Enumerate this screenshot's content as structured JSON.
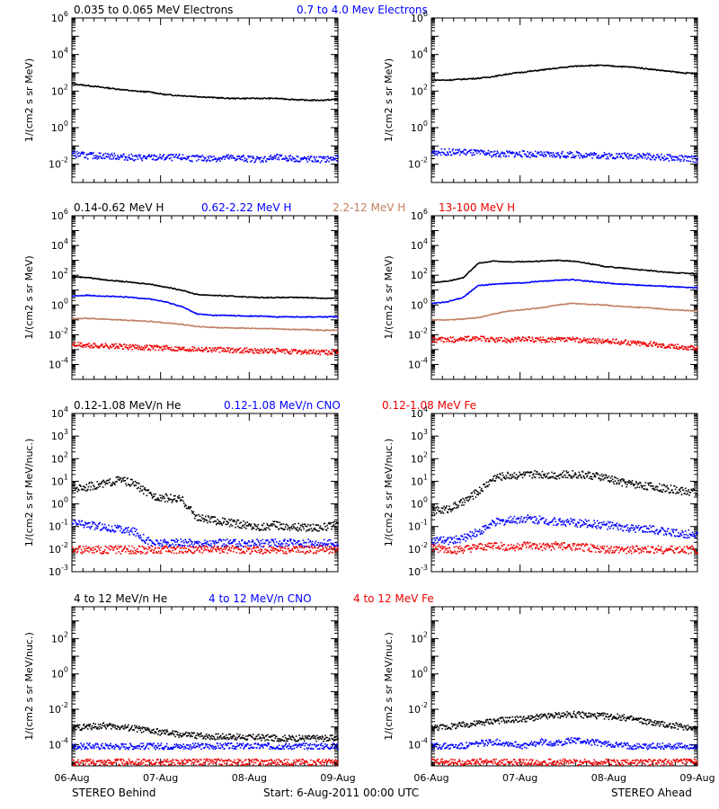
{
  "chart_data": [
    {
      "type": "scatter",
      "panel": "electrons-behind",
      "titles": [
        {
          "text": "0.035 to 0.065 MeV Electrons",
          "color": "#000000"
        },
        {
          "text": "0.7 to 4.0 Mev Electrons",
          "color": "#0000ff"
        }
      ],
      "ylabel": "1/(cm2 s sr MeV)",
      "yscale": "log",
      "ylim": [
        -3,
        6
      ],
      "yticks": [
        -2,
        0,
        2,
        4,
        6
      ],
      "x": [
        "06-Aug",
        "07-Aug",
        "08-Aug",
        "09-Aug"
      ],
      "series": [
        {
          "name": "0.035 to 0.065 MeV Electrons",
          "color": "#000000",
          "style": "line",
          "log10_values": [
            2.4,
            2.3,
            2.2,
            2.1,
            2.0,
            1.95,
            1.8,
            1.75,
            1.7,
            1.65,
            1.6,
            1.6,
            1.6,
            1.6,
            1.55,
            1.5,
            1.5,
            1.55
          ]
        },
        {
          "name": "0.7 to 4.0 Mev Electrons",
          "color": "#0000ff",
          "style": "points",
          "log10_values": [
            -1.4,
            -1.5,
            -1.5,
            -1.55,
            -1.6,
            -1.6,
            -1.6,
            -1.6,
            -1.65,
            -1.65,
            -1.6,
            -1.65,
            -1.7,
            -1.6,
            -1.65,
            -1.7,
            -1.7,
            -1.65
          ]
        }
      ]
    },
    {
      "type": "scatter",
      "panel": "electrons-ahead",
      "ylabel": "1/(cm2 s sr MeV)",
      "yscale": "log",
      "ylim": [
        -3,
        6
      ],
      "yticks": [
        -2,
        0,
        2,
        4,
        6
      ],
      "x": [
        "06-Aug",
        "07-Aug",
        "08-Aug",
        "09-Aug"
      ],
      "series": [
        {
          "color": "#000000",
          "style": "line",
          "log10_values": [
            2.6,
            2.6,
            2.65,
            2.7,
            2.8,
            2.95,
            3.05,
            3.15,
            3.25,
            3.35,
            3.4,
            3.4,
            3.35,
            3.3,
            3.2,
            3.1,
            3.0,
            2.95
          ]
        },
        {
          "color": "#0000ff",
          "style": "points",
          "log10_values": [
            -1.3,
            -1.3,
            -1.3,
            -1.35,
            -1.4,
            -1.4,
            -1.4,
            -1.45,
            -1.45,
            -1.45,
            -1.45,
            -1.5,
            -1.5,
            -1.5,
            -1.55,
            -1.6,
            -1.65,
            -1.7
          ]
        }
      ]
    },
    {
      "type": "scatter",
      "panel": "protons-behind",
      "titles": [
        {
          "text": "0.14-0.62 MeV H",
          "color": "#000000"
        },
        {
          "text": "0.62-2.22 MeV H",
          "color": "#0000ff"
        },
        {
          "text": "2.2-12 MeV H",
          "color": "#c08060"
        },
        {
          "text": "13-100 MeV H",
          "color": "#ee0000"
        }
      ],
      "ylabel": "1/(cm2 s sr MeV)",
      "yscale": "log",
      "ylim": [
        -5,
        6
      ],
      "yticks": [
        -4,
        -2,
        0,
        2,
        4,
        6
      ],
      "x": [
        "06-Aug",
        "07-Aug",
        "08-Aug",
        "09-Aug"
      ],
      "series": [
        {
          "name": "0.14-0.62 MeV H",
          "color": "#000000",
          "style": "line",
          "log10_values": [
            1.9,
            1.85,
            1.7,
            1.6,
            1.5,
            1.4,
            1.2,
            1.0,
            0.7,
            0.65,
            0.6,
            0.55,
            0.5,
            0.5,
            0.5,
            0.5,
            0.45,
            0.45
          ]
        },
        {
          "name": "0.62-2.22 MeV H",
          "color": "#0000ff",
          "style": "line",
          "log10_values": [
            0.6,
            0.65,
            0.6,
            0.55,
            0.5,
            0.4,
            0.2,
            -0.1,
            -0.6,
            -0.7,
            -0.7,
            -0.75,
            -0.75,
            -0.8,
            -0.8,
            -0.8,
            -0.8,
            -0.8
          ]
        },
        {
          "name": "2.2-12 MeV H",
          "color": "#c08060",
          "style": "line",
          "log10_values": [
            -0.9,
            -0.9,
            -0.95,
            -1.0,
            -1.05,
            -1.1,
            -1.2,
            -1.3,
            -1.45,
            -1.5,
            -1.55,
            -1.55,
            -1.6,
            -1.6,
            -1.65,
            -1.65,
            -1.7,
            -1.7
          ]
        },
        {
          "name": "13-100 MeV H",
          "color": "#ee0000",
          "style": "points",
          "log10_values": [
            -2.6,
            -2.7,
            -2.7,
            -2.75,
            -2.8,
            -2.8,
            -2.85,
            -2.9,
            -2.9,
            -2.95,
            -3.0,
            -3.0,
            -3.05,
            -3.05,
            -3.1,
            -3.1,
            -3.15,
            -3.15
          ]
        }
      ]
    },
    {
      "type": "scatter",
      "panel": "protons-ahead",
      "ylabel": "1/(cm2 s sr MeV)",
      "yscale": "log",
      "ylim": [
        -5,
        6
      ],
      "yticks": [
        -4,
        -2,
        0,
        2,
        4,
        6
      ],
      "x": [
        "06-Aug",
        "07-Aug",
        "08-Aug",
        "09-Aug"
      ],
      "series": [
        {
          "color": "#000000",
          "style": "line",
          "log10_values": [
            1.5,
            1.6,
            1.8,
            2.8,
            2.95,
            2.9,
            2.9,
            2.95,
            3.0,
            2.95,
            2.8,
            2.6,
            2.5,
            2.4,
            2.3,
            2.2,
            2.15,
            2.1
          ]
        },
        {
          "color": "#0000ff",
          "style": "line",
          "log10_values": [
            0.1,
            0.2,
            0.5,
            1.3,
            1.4,
            1.45,
            1.5,
            1.6,
            1.65,
            1.7,
            1.6,
            1.5,
            1.4,
            1.35,
            1.3,
            1.25,
            1.2,
            1.15
          ]
        },
        {
          "color": "#c08060",
          "style": "line",
          "log10_values": [
            -1.0,
            -1.0,
            -0.95,
            -0.85,
            -0.6,
            -0.4,
            -0.3,
            -0.2,
            0.0,
            0.1,
            0.05,
            0.0,
            -0.1,
            -0.15,
            -0.2,
            -0.3,
            -0.35,
            -0.4
          ]
        },
        {
          "color": "#ee0000",
          "style": "points",
          "log10_values": [
            -2.3,
            -2.3,
            -2.25,
            -2.2,
            -2.3,
            -2.3,
            -2.25,
            -2.3,
            -2.3,
            -2.3,
            -2.35,
            -2.4,
            -2.45,
            -2.5,
            -2.6,
            -2.7,
            -2.8,
            -2.9
          ]
        }
      ]
    },
    {
      "type": "scatter",
      "panel": "ions-low-behind",
      "titles": [
        {
          "text": "0.12-1.08 MeV/n He",
          "color": "#000000"
        },
        {
          "text": "0.12-1.08 MeV/n CNO",
          "color": "#0000ff"
        },
        {
          "text": "0.12-1.08 MeV Fe",
          "color": "#ee0000"
        }
      ],
      "ylabel": "1/(cm2 s sr MeV/nuc.)",
      "yscale": "log",
      "ylim": [
        -3,
        4
      ],
      "yticks": [
        -3,
        -2,
        -1,
        0,
        1,
        2,
        3,
        4
      ],
      "x": [
        "06-Aug",
        "07-Aug",
        "08-Aug",
        "09-Aug"
      ],
      "series": [
        {
          "name": "0.12-1.08 MeV/n He",
          "color": "#000000",
          "style": "points",
          "log10_values": [
            0.7,
            0.8,
            0.9,
            1.1,
            0.9,
            0.4,
            0.3,
            0.2,
            -0.6,
            -0.7,
            -0.8,
            -0.9,
            -1.0,
            -0.9,
            -1.0,
            -1.0,
            -1.0,
            -0.9
          ]
        },
        {
          "name": "0.12-1.08 MeV/n CNO",
          "color": "#0000ff",
          "style": "points",
          "log10_values": [
            -0.8,
            -0.9,
            -1.0,
            -1.1,
            -1.2,
            -1.7,
            -1.7,
            -1.7,
            -1.7,
            -1.7,
            -1.7,
            -1.7,
            -1.7,
            -1.7,
            -1.7,
            -1.7,
            -1.7,
            -1.7
          ]
        },
        {
          "name": "0.12-1.08 MeV Fe",
          "color": "#ee0000",
          "style": "points",
          "log10_values": [
            -2.0,
            -2.0,
            -2.0,
            -2.0,
            -2.0,
            -2.0,
            -2.0,
            -2.0,
            -2.0,
            -2.0,
            -2.0,
            -2.0,
            -2.0,
            -2.0,
            -2.0,
            -2.0,
            -2.0,
            -2.0
          ]
        }
      ]
    },
    {
      "type": "scatter",
      "panel": "ions-low-ahead",
      "ylabel": "1/(cm2 s sr MeV/nuc.)",
      "yscale": "log",
      "ylim": [
        -3,
        4
      ],
      "yticks": [
        -3,
        -2,
        -1,
        0,
        1,
        2,
        3,
        4
      ],
      "x": [
        "06-Aug",
        "07-Aug",
        "08-Aug",
        "09-Aug"
      ],
      "series": [
        {
          "color": "#000000",
          "style": "points",
          "log10_values": [
            -0.3,
            -0.2,
            0.1,
            0.6,
            1.2,
            1.3,
            1.3,
            1.35,
            1.3,
            1.35,
            1.3,
            1.2,
            1.0,
            0.9,
            0.8,
            0.7,
            0.6,
            0.55
          ]
        },
        {
          "color": "#0000ff",
          "style": "points",
          "log10_values": [
            -1.6,
            -1.6,
            -1.5,
            -1.2,
            -0.8,
            -0.7,
            -0.6,
            -0.7,
            -0.75,
            -0.8,
            -0.85,
            -0.9,
            -1.0,
            -1.1,
            -1.1,
            -1.2,
            -1.3,
            -1.3
          ]
        },
        {
          "color": "#ee0000",
          "style": "points",
          "log10_values": [
            -1.9,
            -2.0,
            -2.0,
            -1.9,
            -1.8,
            -1.9,
            -1.8,
            -1.9,
            -1.8,
            -1.9,
            -1.9,
            -2.0,
            -2.0,
            -2.0,
            -2.0,
            -2.0,
            -2.0,
            -2.0
          ]
        }
      ]
    },
    {
      "type": "scatter",
      "panel": "ions-high-behind",
      "titles": [
        {
          "text": "4 to 12 MeV/n He",
          "color": "#000000"
        },
        {
          "text": "4 to 12 MeV/n CNO",
          "color": "#0000ff"
        },
        {
          "text": "4 to 12 MeV Fe",
          "color": "#ee0000"
        }
      ],
      "ylabel": "1/(cm2 s sr MeV/nuc.)",
      "yscale": "log",
      "ylim": [
        -5.2,
        3.8
      ],
      "yticks": [
        -4,
        -2,
        0,
        2
      ],
      "x": [
        "06-Aug",
        "07-Aug",
        "08-Aug",
        "09-Aug"
      ],
      "series": [
        {
          "name": "4 to 12 MeV/n He",
          "color": "#000000",
          "style": "points",
          "log10_values": [
            -3.0,
            -2.95,
            -2.9,
            -2.95,
            -3.05,
            -3.2,
            -3.3,
            -3.4,
            -3.45,
            -3.5,
            -3.5,
            -3.55,
            -3.55,
            -3.6,
            -3.6,
            -3.6,
            -3.6,
            -3.6
          ]
        },
        {
          "name": "4 to 12 MeV/n CNO",
          "color": "#0000ff",
          "style": "points",
          "log10_values": [
            -4.05,
            -4.05,
            -4.05,
            -4.05,
            -4.05,
            -4.05,
            -4.05,
            -4.05,
            -4.05,
            -4.05,
            -4.05,
            -4.05,
            -4.05,
            -4.05,
            -4.05,
            -4.05,
            -4.05,
            -4.05
          ]
        },
        {
          "name": "4 to 12 MeV Fe",
          "color": "#ee0000",
          "style": "points",
          "log10_values": [
            -4.95,
            -4.95,
            -4.95,
            -4.95,
            -4.95,
            -4.95,
            -4.95,
            -4.95,
            -4.95,
            -4.95,
            -4.95,
            -4.95,
            -4.95,
            -4.95,
            -4.95,
            -4.95,
            -4.95,
            -4.95
          ]
        }
      ]
    },
    {
      "type": "scatter",
      "panel": "ions-high-ahead",
      "ylabel": "1/(cm2 s sr MeV/nuc.)",
      "yscale": "log",
      "ylim": [
        -5.2,
        3.8
      ],
      "yticks": [
        -4,
        -2,
        0,
        2
      ],
      "x": [
        "06-Aug",
        "07-Aug",
        "08-Aug",
        "09-Aug"
      ],
      "series": [
        {
          "color": "#000000",
          "style": "points",
          "log10_values": [
            -3.0,
            -2.95,
            -2.85,
            -2.75,
            -2.6,
            -2.55,
            -2.5,
            -2.4,
            -2.3,
            -2.25,
            -2.3,
            -2.35,
            -2.4,
            -2.55,
            -2.7,
            -2.85,
            -2.95,
            -3.0
          ]
        },
        {
          "color": "#0000ff",
          "style": "points",
          "log10_values": [
            -4.05,
            -4.05,
            -4.05,
            -3.9,
            -3.8,
            -3.9,
            -4.05,
            -3.8,
            -3.9,
            -3.7,
            -3.8,
            -3.9,
            -4.0,
            -4.05,
            -4.05,
            -4.05,
            -4.05,
            -4.05
          ]
        },
        {
          "color": "#ee0000",
          "style": "points",
          "log10_values": [
            -4.95,
            -4.95,
            -4.95,
            -4.95,
            -4.95,
            -4.95,
            -4.95,
            -4.95,
            -4.95,
            -4.95,
            -4.95,
            -4.95,
            -4.95,
            -4.95,
            -4.95,
            -4.95,
            -4.95,
            -4.95
          ]
        }
      ]
    }
  ],
  "footer": {
    "left": "STEREO Behind",
    "center": "Start:  6-Aug-2011 00:00 UTC",
    "right": "STEREO Ahead"
  },
  "colors": {
    "black": "#000000",
    "blue": "#0000ff",
    "tan": "#c08060",
    "red": "#ee0000"
  }
}
